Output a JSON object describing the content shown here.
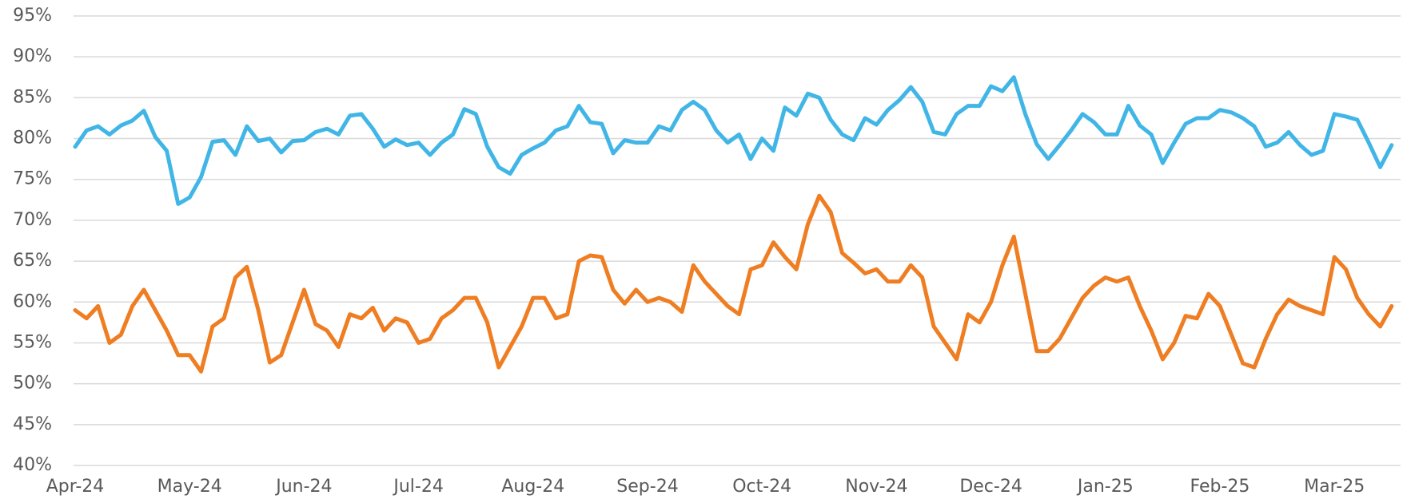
{
  "chart_data": {
    "type": "line",
    "categories": [
      "Apr-24",
      null,
      null,
      null,
      null,
      null,
      null,
      null,
      null,
      null,
      "May-24",
      null,
      null,
      null,
      null,
      null,
      null,
      null,
      null,
      null,
      "Jun-24",
      null,
      null,
      null,
      null,
      null,
      null,
      null,
      null,
      null,
      "Jul-24",
      null,
      null,
      null,
      null,
      null,
      null,
      null,
      null,
      null,
      "Aug-24",
      null,
      null,
      null,
      null,
      null,
      null,
      null,
      null,
      null,
      "Sep-24",
      null,
      null,
      null,
      null,
      null,
      null,
      null,
      null,
      null,
      "Oct-24",
      null,
      null,
      null,
      null,
      null,
      null,
      null,
      null,
      null,
      "Nov-24",
      null,
      null,
      null,
      null,
      null,
      null,
      null,
      null,
      null,
      "Dec-24",
      null,
      null,
      null,
      null,
      null,
      null,
      null,
      null,
      null,
      "Jan-25",
      null,
      null,
      null,
      null,
      null,
      null,
      null,
      null,
      null,
      "Feb-25",
      null,
      null,
      null,
      null,
      null,
      null,
      null,
      null,
      null,
      "Mar-25",
      null,
      null,
      null,
      null,
      null
    ],
    "series": [
      {
        "color": "#41b6e6",
        "values": [
          79,
          81,
          81.5,
          80.5,
          81.6,
          82.2,
          83.4,
          80.2,
          78.5,
          72,
          72.8,
          75.3,
          79.6,
          79.8,
          78,
          81.5,
          79.7,
          80,
          78.3,
          79.7,
          79.8,
          80.8,
          81.2,
          80.5,
          82.8,
          83,
          81.2,
          79,
          79.9,
          79.2,
          79.5,
          78,
          79.5,
          80.5,
          83.6,
          83,
          79,
          76.5,
          75.7,
          78,
          78.8,
          79.5,
          81,
          81.5,
          84,
          82,
          81.8,
          78.2,
          79.8,
          79.5,
          79.5,
          81.5,
          81,
          83.5,
          84.5,
          83.5,
          81,
          79.5,
          80.5,
          77.5,
          80,
          78.5,
          83.8,
          82.8,
          85.5,
          85,
          82.3,
          80.5,
          79.8,
          82.5,
          81.7,
          83.5,
          84.7,
          86.3,
          84.5,
          80.8,
          80.5,
          83,
          84,
          84,
          86.4,
          85.8,
          87.5,
          83,
          79.3,
          77.5,
          79.2,
          81,
          83,
          82,
          80.5,
          80.5,
          84,
          81.6,
          80.5,
          77,
          79.5,
          81.8,
          82.5,
          82.5,
          83.5,
          83.2,
          82.5,
          81.5,
          79,
          79.5,
          80.8,
          79.2,
          78,
          78.5,
          83,
          82.7,
          82.3,
          79.5,
          76.5,
          79.2
        ]
      },
      {
        "color": "#ef7d22",
        "values": [
          59,
          58,
          59.5,
          55,
          56,
          59.5,
          61.5,
          59,
          56.5,
          53.5,
          53.5,
          51.5,
          57,
          58,
          63,
          64.3,
          59,
          52.6,
          53.5,
          57.5,
          61.5,
          57.3,
          56.5,
          54.5,
          58.5,
          58,
          59.3,
          56.5,
          58,
          57.5,
          55,
          55.5,
          58,
          59,
          60.5,
          60.5,
          57.5,
          52,
          54.5,
          57,
          60.5,
          60.5,
          58,
          58.5,
          65,
          65.7,
          65.5,
          61.5,
          59.8,
          61.5,
          60,
          60.5,
          60,
          58.8,
          64.5,
          62.5,
          61,
          59.5,
          58.5,
          64,
          64.5,
          67.3,
          65.5,
          64,
          69.5,
          73,
          71,
          66,
          64.8,
          63.5,
          64,
          62.5,
          62.5,
          64.5,
          63,
          57,
          55,
          53,
          58.5,
          57.5,
          60,
          64.5,
          68,
          61,
          54,
          54,
          55.5,
          58,
          60.5,
          62,
          63,
          62.5,
          63,
          59.5,
          56.5,
          53,
          55,
          58.3,
          58,
          61,
          59.5,
          56,
          52.5,
          52,
          55.5,
          58.5,
          60.3,
          59.5,
          59,
          58.5,
          65.5,
          64,
          60.5,
          58.5,
          57,
          59.5
        ]
      }
    ],
    "ylim": [
      40,
      95
    ],
    "yticks": [
      {
        "value": 40,
        "label": "40%"
      },
      {
        "value": 45,
        "label": "45%"
      },
      {
        "value": 50,
        "label": "50%"
      },
      {
        "value": 55,
        "label": "55%"
      },
      {
        "value": 60,
        "label": "60%"
      },
      {
        "value": 65,
        "label": "65%"
      },
      {
        "value": 70,
        "label": "70%"
      },
      {
        "value": 75,
        "label": "75%"
      },
      {
        "value": 80,
        "label": "80%"
      },
      {
        "value": 85,
        "label": "85%"
      },
      {
        "value": 90,
        "label": "90%"
      },
      {
        "value": 95,
        "label": "95%"
      }
    ],
    "grid": true
  }
}
